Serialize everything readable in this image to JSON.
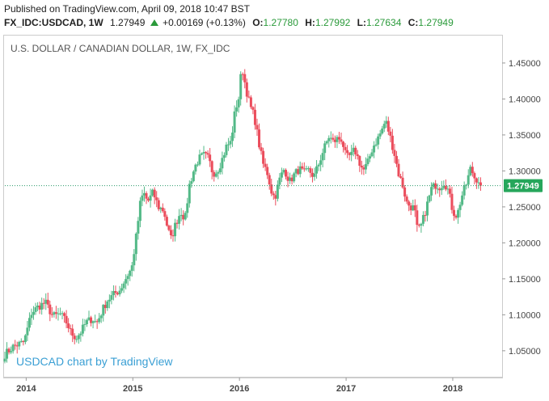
{
  "header": {
    "published_line": "Published on TradingView.com, April 09, 2018 10:47 BST",
    "symbol": "FX_IDC:USDCAD, 1W",
    "last": "1.27949",
    "change": "+0.00169 (+0.13%)",
    "o_label": "O:",
    "o_value": "1.27780",
    "h_label": "H:",
    "h_value": "1.27992",
    "l_label": "L:",
    "l_value": "1.27634",
    "c_label": "C:",
    "c_value": "1.27949"
  },
  "colors": {
    "up": "#53b987",
    "down": "#eb4d5c",
    "accent_green": "#2a9a3a",
    "price_line": "#2a9a6a",
    "watermark": "#3a9fd4"
  },
  "chart_data": {
    "type": "candlestick",
    "title": "U.S. DOLLAR / CANADIAN DOLLAR, 1W, FX_IDC",
    "watermark": "USDCAD chart by TradingView",
    "last_price": 1.27949,
    "last_price_label": "1.27949",
    "x_ticks": [
      {
        "label": "2014",
        "x": 2014.0
      },
      {
        "label": "2015",
        "x": 2015.0
      },
      {
        "label": "2016",
        "x": 2016.0
      },
      {
        "label": "2017",
        "x": 2017.0
      },
      {
        "label": "2018",
        "x": 2018.0
      }
    ],
    "y_ticks": [
      "1.45000",
      "1.40000",
      "1.35000",
      "1.30000",
      "1.25000",
      "1.20000",
      "1.15000",
      "1.10000",
      "1.05000"
    ],
    "ylim": [
      1.015,
      1.487
    ],
    "xlim": [
      2013.8,
      2018.44
    ],
    "grid": false,
    "anchors": [
      [
        2013.8,
        1.045
      ],
      [
        2013.88,
        1.056
      ],
      [
        2013.98,
        1.062
      ],
      [
        2014.05,
        1.103
      ],
      [
        2014.12,
        1.112
      ],
      [
        2014.18,
        1.117
      ],
      [
        2014.25,
        1.098
      ],
      [
        2014.32,
        1.101
      ],
      [
        2014.38,
        1.089
      ],
      [
        2014.42,
        1.075
      ],
      [
        2014.47,
        1.068
      ],
      [
        2014.52,
        1.078
      ],
      [
        2014.56,
        1.089
      ],
      [
        2014.62,
        1.095
      ],
      [
        2014.66,
        1.088
      ],
      [
        2014.72,
        1.108
      ],
      [
        2014.76,
        1.12
      ],
      [
        2014.82,
        1.128
      ],
      [
        2014.88,
        1.135
      ],
      [
        2014.95,
        1.155
      ],
      [
        2014.99,
        1.165
      ],
      [
        2015.03,
        1.207
      ],
      [
        2015.07,
        1.255
      ],
      [
        2015.1,
        1.27
      ],
      [
        2015.14,
        1.257
      ],
      [
        2015.19,
        1.27
      ],
      [
        2015.24,
        1.25
      ],
      [
        2015.29,
        1.245
      ],
      [
        2015.33,
        1.218
      ],
      [
        2015.36,
        1.205
      ],
      [
        2015.4,
        1.226
      ],
      [
        2015.45,
        1.244
      ],
      [
        2015.49,
        1.233
      ],
      [
        2015.53,
        1.28
      ],
      [
        2015.58,
        1.305
      ],
      [
        2015.62,
        1.317
      ],
      [
        2015.67,
        1.322
      ],
      [
        2015.71,
        1.317
      ],
      [
        2015.75,
        1.297
      ],
      [
        2015.79,
        1.3
      ],
      [
        2015.83,
        1.313
      ],
      [
        2015.88,
        1.335
      ],
      [
        2015.92,
        1.34
      ],
      [
        2015.96,
        1.385
      ],
      [
        2016.0,
        1.405
      ],
      [
        2016.02,
        1.448
      ],
      [
        2016.06,
        1.415
      ],
      [
        2016.1,
        1.39
      ],
      [
        2016.14,
        1.375
      ],
      [
        2016.18,
        1.34
      ],
      [
        2016.22,
        1.31
      ],
      [
        2016.26,
        1.298
      ],
      [
        2016.3,
        1.272
      ],
      [
        2016.33,
        1.262
      ],
      [
        2016.38,
        1.29
      ],
      [
        2016.42,
        1.303
      ],
      [
        2016.47,
        1.285
      ],
      [
        2016.51,
        1.294
      ],
      [
        2016.56,
        1.303
      ],
      [
        2016.61,
        1.296
      ],
      [
        2016.65,
        1.301
      ],
      [
        2016.7,
        1.292
      ],
      [
        2016.75,
        1.313
      ],
      [
        2016.79,
        1.33
      ],
      [
        2016.84,
        1.348
      ],
      [
        2016.88,
        1.34
      ],
      [
        2016.92,
        1.345
      ],
      [
        2016.96,
        1.344
      ],
      [
        2017.0,
        1.318
      ],
      [
        2017.05,
        1.322
      ],
      [
        2017.08,
        1.33
      ],
      [
        2017.12,
        1.314
      ],
      [
        2017.16,
        1.3
      ],
      [
        2017.2,
        1.31
      ],
      [
        2017.25,
        1.333
      ],
      [
        2017.29,
        1.343
      ],
      [
        2017.33,
        1.355
      ],
      [
        2017.37,
        1.37
      ],
      [
        2017.41,
        1.349
      ],
      [
        2017.45,
        1.326
      ],
      [
        2017.49,
        1.297
      ],
      [
        2017.53,
        1.28
      ],
      [
        2017.57,
        1.255
      ],
      [
        2017.61,
        1.25
      ],
      [
        2017.64,
        1.248
      ],
      [
        2017.67,
        1.215
      ],
      [
        2017.71,
        1.226
      ],
      [
        2017.75,
        1.248
      ],
      [
        2017.8,
        1.275
      ],
      [
        2017.84,
        1.281
      ],
      [
        2017.88,
        1.278
      ],
      [
        2017.92,
        1.285
      ],
      [
        2017.96,
        1.272
      ],
      [
        2018.0,
        1.244
      ],
      [
        2018.04,
        1.237
      ],
      [
        2018.08,
        1.263
      ],
      [
        2018.13,
        1.283
      ],
      [
        2018.17,
        1.305
      ],
      [
        2018.2,
        1.291
      ],
      [
        2018.24,
        1.288
      ],
      [
        2018.27,
        1.279
      ]
    ]
  }
}
